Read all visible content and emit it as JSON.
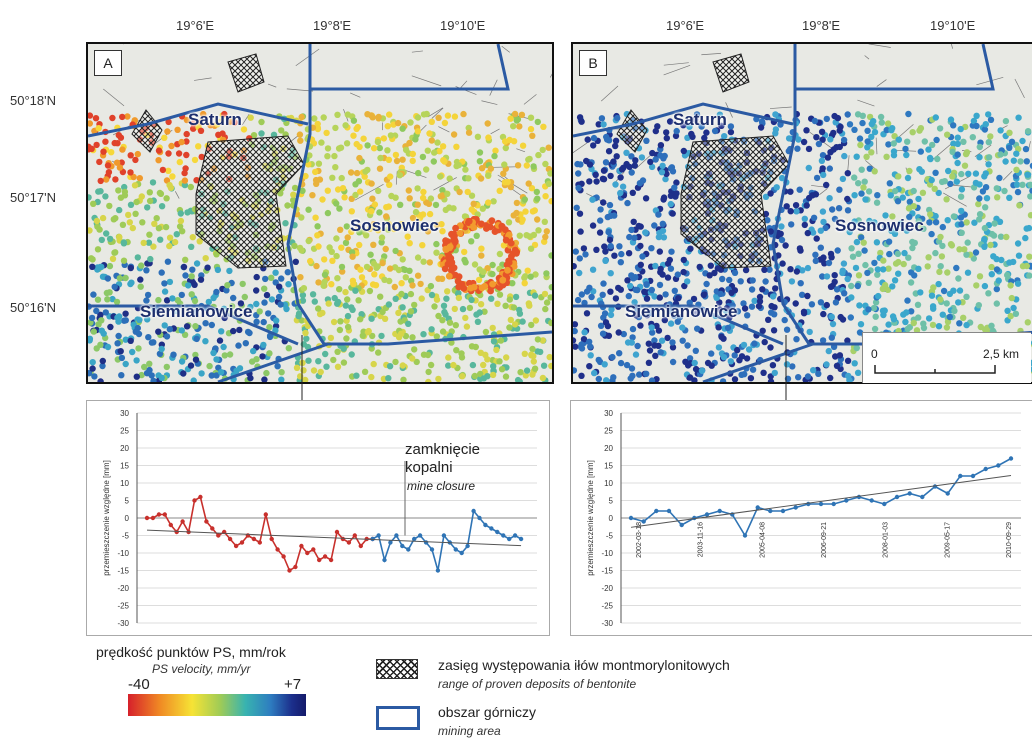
{
  "coords": {
    "lon": [
      "19°6'E",
      "19°8'E",
      "19°10'E"
    ],
    "lat": [
      "50°18'N",
      "50°17'N",
      "50°16'N"
    ]
  },
  "panels": [
    {
      "letter": "A",
      "places": [
        "Saturn",
        "Sosnowiec",
        "Siemianowice"
      ]
    },
    {
      "letter": "B",
      "places": [
        "Saturn",
        "Sosnowiec",
        "Siemianowice"
      ]
    }
  ],
  "scalebar": {
    "zero": "0",
    "end": "2,5 km"
  },
  "charts": {
    "ylabel": "przemieszczenie względne [mm]",
    "yticks": [
      30,
      25,
      20,
      15,
      10,
      5,
      0,
      -5,
      -10,
      -15,
      -20,
      -25,
      -30
    ],
    "annotation": {
      "line1": "zamknięcie",
      "line2": "kopalni",
      "line3": "mine closure"
    }
  },
  "chart_data": [
    {
      "type": "line",
      "ylim": [
        -30,
        30
      ],
      "ylabel": "przemieszczenie względne [mm]",
      "series": [
        {
          "color": "#c8302c",
          "values": [
            0,
            0,
            1,
            1,
            -2,
            -4,
            -1,
            -4,
            5,
            6,
            -1,
            -3,
            -5,
            -4,
            -6,
            -8,
            -7,
            -5,
            -6,
            -7,
            1,
            -6,
            -9,
            -11,
            -15,
            -14,
            -8,
            -10,
            -9,
            -12,
            -11,
            -12,
            -4,
            -6,
            -7,
            -5,
            -8,
            -6,
            -6
          ]
        },
        {
          "color": "#2f74b5",
          "values": [
            -6,
            -5,
            -12,
            -7,
            -5,
            -8,
            -9,
            -6,
            -5,
            -7,
            -9,
            -15,
            -5,
            -7,
            -9,
            -10,
            -8,
            2,
            0,
            -2,
            -3,
            -4,
            -5,
            -6,
            -5,
            -6
          ]
        }
      ]
    },
    {
      "type": "line",
      "ylim": [
        -30,
        30
      ],
      "xticks": [
        "2002-03-18",
        "2003-11-16",
        "2005-04-08",
        "2006-09-21",
        "2008-01-03",
        "2009-05-17",
        "2010-09-29"
      ],
      "series": [
        {
          "color": "#2f74b5",
          "values": [
            0,
            -1,
            2,
            2,
            -2,
            0,
            1,
            2,
            1,
            -5,
            3,
            2,
            2,
            3,
            4,
            4,
            4,
            5,
            6,
            5,
            4,
            6,
            7,
            6,
            9,
            7,
            12,
            12,
            14,
            15,
            17
          ]
        }
      ]
    }
  ],
  "legend": {
    "velocity_title": "prędkość punktów PS, mm/rok",
    "velocity_sub": "PS velocity, mm/yr",
    "min": "-40",
    "max": "+7",
    "bentonite_title": "zasięg występowania iłów montmorylonitowych",
    "bentonite_sub": "range of proven deposits of bentonite",
    "mining_title": "obszar górniczy",
    "mining_sub": "mining area"
  },
  "colors": {
    "mining_area": "#2b5aa3",
    "place_label": "#1d2f6e"
  }
}
